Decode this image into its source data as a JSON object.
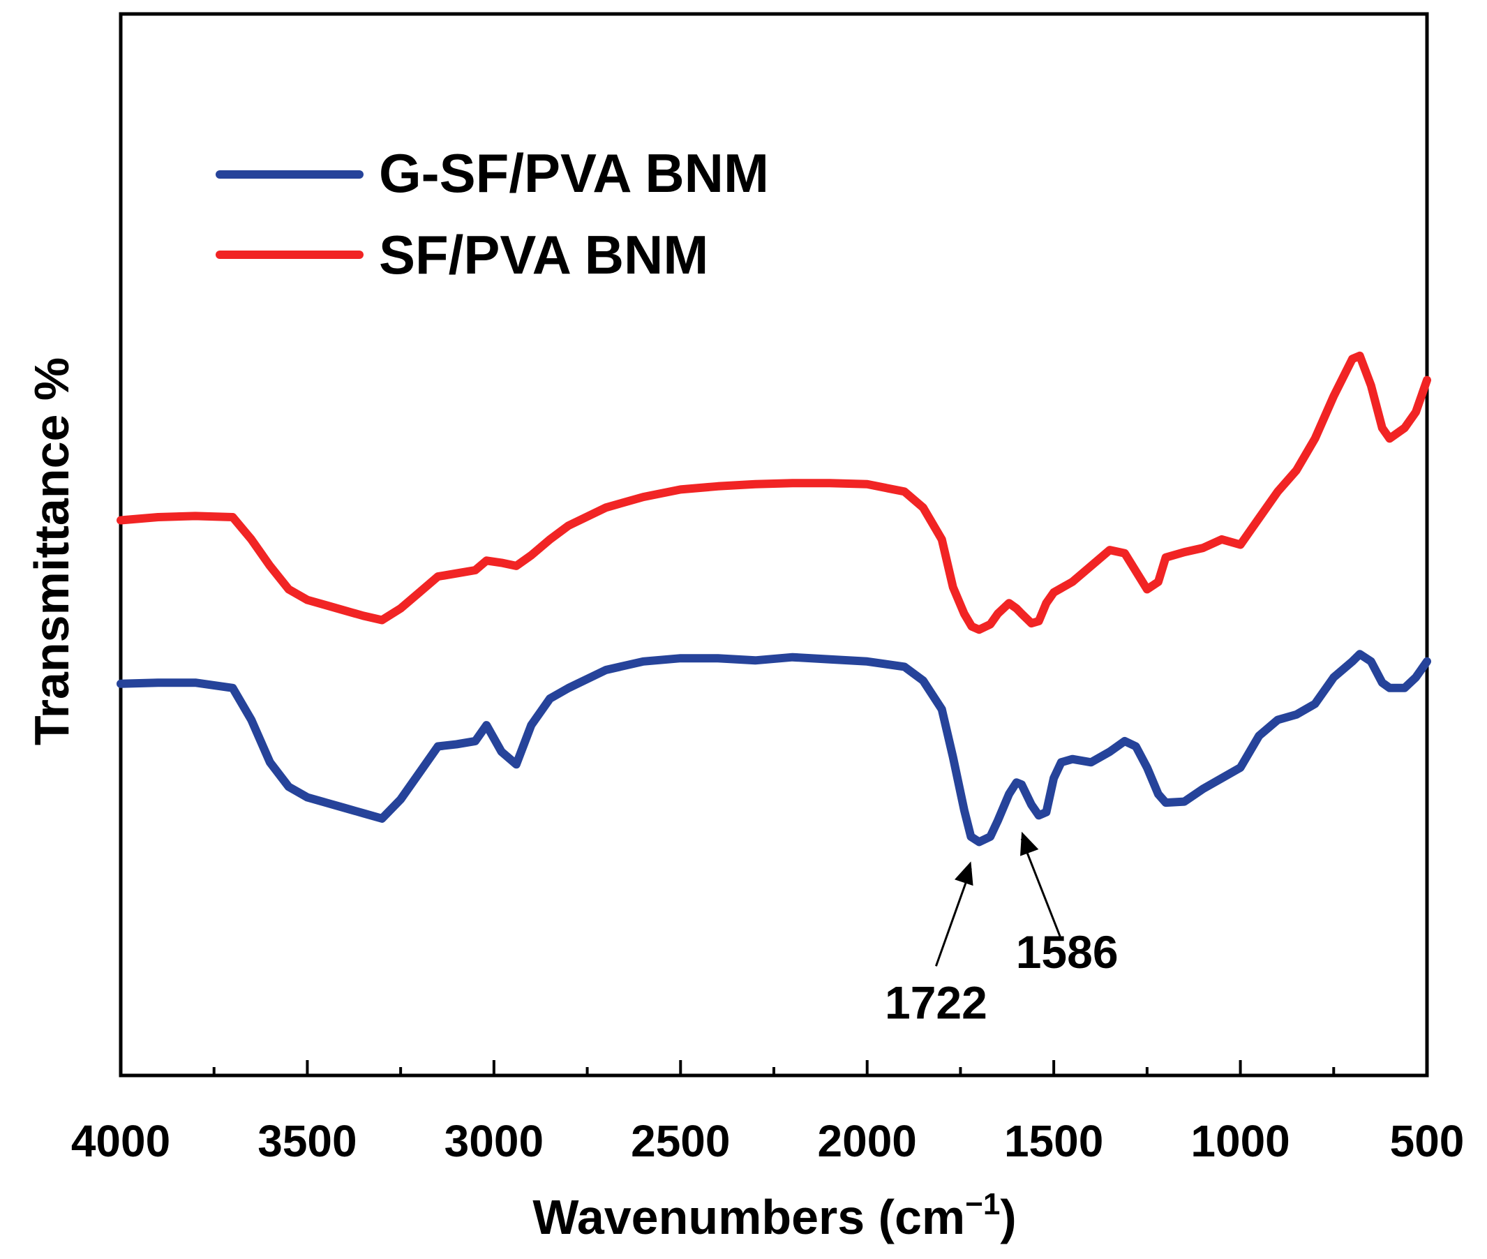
{
  "chart_data": {
    "type": "line",
    "title": "",
    "xlabel_main": "Wavenumbers (cm",
    "xlabel_sup": "−1",
    "xlabel_close": ")",
    "ylabel": "Transmittance %",
    "xlim": [
      4000,
      500
    ],
    "ylim": [
      0,
      100
    ],
    "x_ticks": [
      "4000",
      "3500",
      "3000",
      "2500",
      "2000",
      "1500",
      "1000",
      "500"
    ],
    "x_tick_values": [
      4000,
      3500,
      3000,
      2500,
      2000,
      1500,
      1000,
      500
    ],
    "legend_position": "top-left",
    "series": [
      {
        "name": "G-SF/PVA BNM",
        "color": "#26439a",
        "points": [
          [
            4000,
            36.9
          ],
          [
            3900,
            37.0
          ],
          [
            3800,
            37.0
          ],
          [
            3700,
            36.5
          ],
          [
            3650,
            33.5
          ],
          [
            3600,
            29.5
          ],
          [
            3550,
            27.2
          ],
          [
            3500,
            26.2
          ],
          [
            3450,
            25.7
          ],
          [
            3400,
            25.2
          ],
          [
            3350,
            24.7
          ],
          [
            3300,
            24.2
          ],
          [
            3250,
            26.0
          ],
          [
            3200,
            28.5
          ],
          [
            3150,
            31.0
          ],
          [
            3100,
            31.2
          ],
          [
            3050,
            31.5
          ],
          [
            3020,
            33.0
          ],
          [
            2980,
            30.5
          ],
          [
            2940,
            29.3
          ],
          [
            2900,
            33.0
          ],
          [
            2850,
            35.5
          ],
          [
            2800,
            36.5
          ],
          [
            2700,
            38.2
          ],
          [
            2600,
            39.0
          ],
          [
            2500,
            39.3
          ],
          [
            2400,
            39.3
          ],
          [
            2300,
            39.1
          ],
          [
            2200,
            39.4
          ],
          [
            2100,
            39.2
          ],
          [
            2000,
            39.0
          ],
          [
            1900,
            38.5
          ],
          [
            1850,
            37.2
          ],
          [
            1800,
            34.5
          ],
          [
            1770,
            30.0
          ],
          [
            1740,
            25.0
          ],
          [
            1722,
            22.5
          ],
          [
            1700,
            22.0
          ],
          [
            1670,
            22.5
          ],
          [
            1650,
            24.0
          ],
          [
            1620,
            26.5
          ],
          [
            1600,
            27.6
          ],
          [
            1586,
            27.4
          ],
          [
            1560,
            25.5
          ],
          [
            1540,
            24.5
          ],
          [
            1520,
            24.8
          ],
          [
            1500,
            28.0
          ],
          [
            1480,
            29.5
          ],
          [
            1450,
            29.8
          ],
          [
            1400,
            29.5
          ],
          [
            1350,
            30.5
          ],
          [
            1310,
            31.5
          ],
          [
            1280,
            31.0
          ],
          [
            1250,
            29.0
          ],
          [
            1220,
            26.5
          ],
          [
            1200,
            25.7
          ],
          [
            1150,
            25.8
          ],
          [
            1100,
            27.0
          ],
          [
            1050,
            28.0
          ],
          [
            1000,
            29.0
          ],
          [
            950,
            32.0
          ],
          [
            900,
            33.5
          ],
          [
            850,
            34.0
          ],
          [
            800,
            35.0
          ],
          [
            750,
            37.5
          ],
          [
            700,
            39.0
          ],
          [
            680,
            39.7
          ],
          [
            650,
            39.0
          ],
          [
            620,
            37.0
          ],
          [
            600,
            36.5
          ],
          [
            560,
            36.5
          ],
          [
            530,
            37.5
          ],
          [
            500,
            39.0
          ]
        ]
      },
      {
        "name": "SF/PVA BNM",
        "color": "#f12424",
        "points": [
          [
            4000,
            52.3
          ],
          [
            3900,
            52.6
          ],
          [
            3800,
            52.7
          ],
          [
            3700,
            52.6
          ],
          [
            3650,
            50.5
          ],
          [
            3600,
            48.0
          ],
          [
            3550,
            45.8
          ],
          [
            3500,
            44.8
          ],
          [
            3450,
            44.3
          ],
          [
            3400,
            43.8
          ],
          [
            3350,
            43.3
          ],
          [
            3300,
            42.9
          ],
          [
            3250,
            44.0
          ],
          [
            3200,
            45.5
          ],
          [
            3150,
            47.0
          ],
          [
            3100,
            47.3
          ],
          [
            3050,
            47.6
          ],
          [
            3020,
            48.5
          ],
          [
            2980,
            48.3
          ],
          [
            2940,
            48.0
          ],
          [
            2900,
            49.0
          ],
          [
            2850,
            50.5
          ],
          [
            2800,
            51.8
          ],
          [
            2700,
            53.5
          ],
          [
            2600,
            54.5
          ],
          [
            2500,
            55.2
          ],
          [
            2400,
            55.5
          ],
          [
            2300,
            55.7
          ],
          [
            2200,
            55.8
          ],
          [
            2100,
            55.8
          ],
          [
            2000,
            55.7
          ],
          [
            1900,
            55.0
          ],
          [
            1850,
            53.5
          ],
          [
            1800,
            50.5
          ],
          [
            1770,
            46.0
          ],
          [
            1740,
            43.5
          ],
          [
            1720,
            42.3
          ],
          [
            1700,
            42.0
          ],
          [
            1670,
            42.5
          ],
          [
            1650,
            43.5
          ],
          [
            1620,
            44.5
          ],
          [
            1600,
            44.0
          ],
          [
            1586,
            43.5
          ],
          [
            1560,
            42.6
          ],
          [
            1540,
            42.8
          ],
          [
            1520,
            44.5
          ],
          [
            1500,
            45.5
          ],
          [
            1450,
            46.5
          ],
          [
            1400,
            48.0
          ],
          [
            1350,
            49.5
          ],
          [
            1310,
            49.2
          ],
          [
            1280,
            47.5
          ],
          [
            1250,
            45.8
          ],
          [
            1220,
            46.5
          ],
          [
            1200,
            48.8
          ],
          [
            1150,
            49.3
          ],
          [
            1100,
            49.7
          ],
          [
            1050,
            50.5
          ],
          [
            1000,
            50.0
          ],
          [
            950,
            52.5
          ],
          [
            900,
            55.0
          ],
          [
            850,
            57.0
          ],
          [
            800,
            60.0
          ],
          [
            750,
            64.0
          ],
          [
            700,
            67.5
          ],
          [
            680,
            67.8
          ],
          [
            650,
            65.0
          ],
          [
            620,
            61.0
          ],
          [
            600,
            60.0
          ],
          [
            560,
            61.0
          ],
          [
            530,
            62.5
          ],
          [
            500,
            65.5
          ]
        ]
      }
    ],
    "annotations": [
      {
        "label": "1722",
        "x": 1722,
        "y": 22.0
      },
      {
        "label": "1586",
        "x": 1586,
        "y": 24.8
      }
    ]
  }
}
